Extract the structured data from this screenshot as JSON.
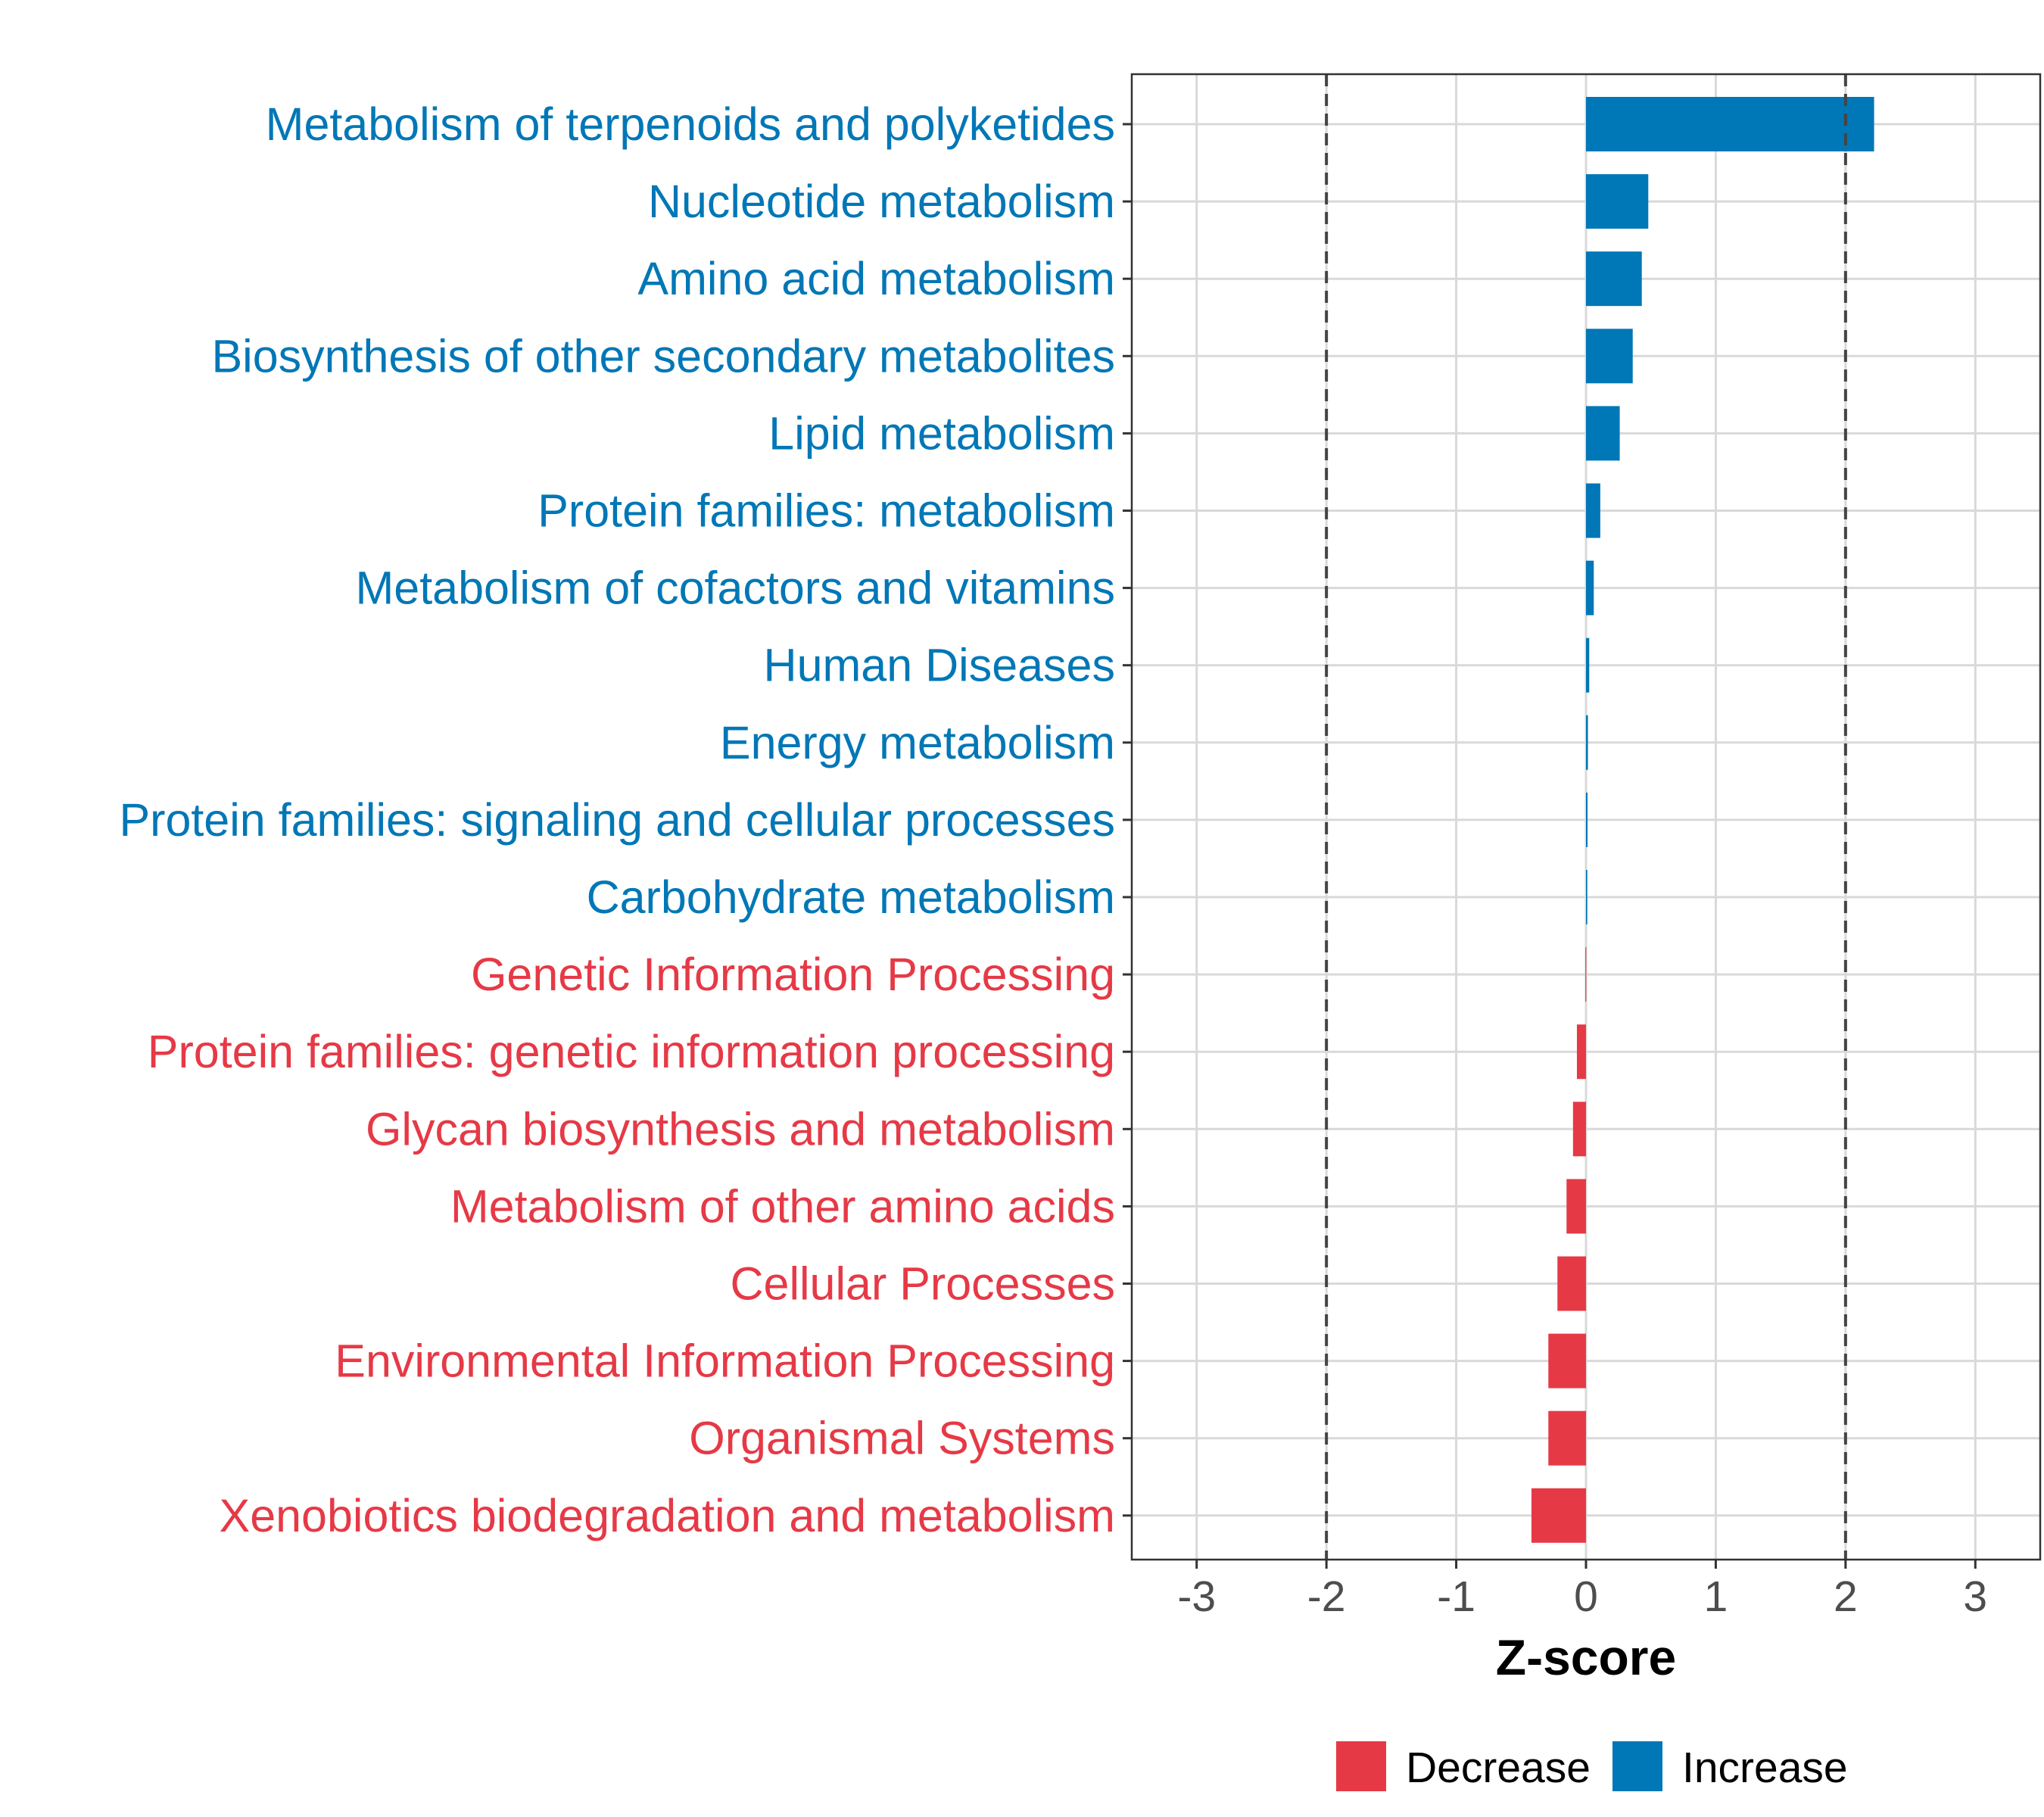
{
  "chart_data": {
    "type": "bar",
    "orientation": "horizontal",
    "title": "",
    "xlabel": "Z-score",
    "ylabel": "",
    "xlim": [
      -3.5,
      3.5
    ],
    "x_ticks": [
      -3,
      -2,
      -1,
      0,
      1,
      2,
      3
    ],
    "x_tick_labels": [
      "-3",
      "-2",
      "-1",
      "0",
      "1",
      "2",
      "3"
    ],
    "reference_lines": [
      -2,
      2
    ],
    "grid": true,
    "legend": {
      "position": "bottom",
      "entries": [
        {
          "name": "Decrease",
          "color": "#E63946"
        },
        {
          "name": "Increase",
          "color": "#0077B6"
        }
      ]
    },
    "categories": [
      "Metabolism of terpenoids and polyketides",
      "Nucleotide metabolism",
      "Amino acid metabolism",
      "Biosynthesis of other secondary metabolites",
      "Lipid metabolism",
      "Protein families: metabolism",
      "Metabolism of cofactors and vitamins",
      "Human Diseases",
      "Energy metabolism",
      "Protein families: signaling and cellular processes",
      "Carbohydrate metabolism",
      "Genetic Information Processing",
      "Protein families: genetic information processing",
      "Glycan biosynthesis and metabolism",
      "Metabolism of other amino acids",
      "Cellular Processes",
      "Environmental Information Processing",
      "Organismal Systems",
      "Xenobiotics biodegradation and metabolism"
    ],
    "values": [
      2.22,
      0.48,
      0.43,
      0.36,
      0.26,
      0.11,
      0.06,
      0.025,
      0.015,
      0.012,
      0.01,
      -0.005,
      -0.07,
      -0.1,
      -0.15,
      -0.22,
      -0.29,
      -0.29,
      -0.42
    ],
    "groups": [
      "Increase",
      "Increase",
      "Increase",
      "Increase",
      "Increase",
      "Increase",
      "Increase",
      "Increase",
      "Increase",
      "Increase",
      "Increase",
      "Decrease",
      "Decrease",
      "Decrease",
      "Decrease",
      "Decrease",
      "Decrease",
      "Decrease",
      "Decrease"
    ],
    "colors": {
      "Increase": "#0077B6",
      "Decrease": "#E63946"
    }
  }
}
